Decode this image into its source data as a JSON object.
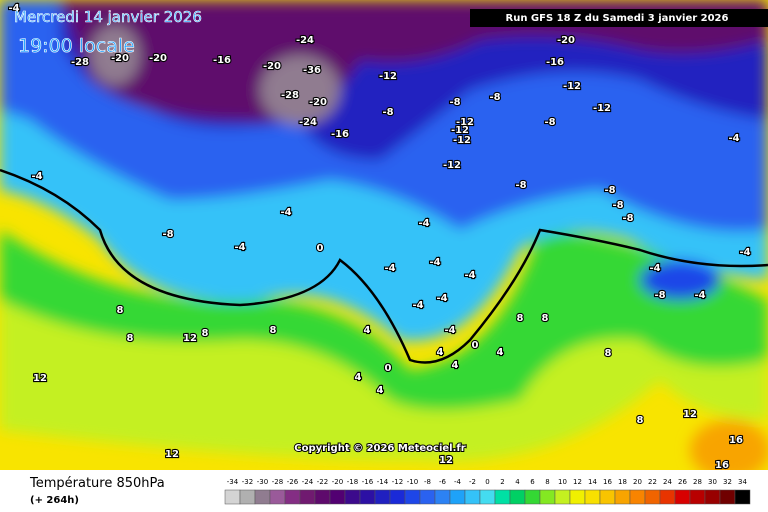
{
  "header": {
    "date": "Mercredi 14 janvier 2026",
    "time": "19:00 locale",
    "run": "Run GFS 18 Z du Samedi 3 janvier 2026"
  },
  "footer": {
    "title": "Température 850hPa",
    "subtitle": "(+ 264h)",
    "copyright": "Copyright © 2026 Meteociel.fr"
  },
  "legend": {
    "ticks": [
      -34,
      -32,
      -30,
      -28,
      -26,
      -24,
      -22,
      -20,
      -18,
      -16,
      -14,
      -12,
      -10,
      -8,
      -6,
      -4,
      -2,
      0,
      2,
      4,
      6,
      8,
      10,
      12,
      14,
      16,
      18,
      20,
      22,
      24,
      26,
      28,
      30,
      32,
      34
    ],
    "colors": [
      "#d4d4d4",
      "#b0b0b0",
      "#907c90",
      "#9a5a9a",
      "#842e84",
      "#701a70",
      "#5e0a6c",
      "#520072",
      "#3c0a8c",
      "#2c10a4",
      "#2020c0",
      "#1a2ad8",
      "#1e46e8",
      "#2a62f0",
      "#2c82f4",
      "#1ea2f8",
      "#34c2f8",
      "#44dcf0",
      "#00e0a4",
      "#00d064",
      "#34d834",
      "#84e822",
      "#c4f020",
      "#f0f000",
      "#f8e000",
      "#f8c400",
      "#f8a400",
      "#f88400",
      "#f06400",
      "#e83400",
      "#d80000",
      "#b80000",
      "#980000",
      "#700000",
      "#000000"
    ]
  },
  "map": {
    "labels": [
      -4,
      -28,
      -20,
      -20,
      -16,
      -24,
      -20,
      -36,
      -28,
      -20,
      -24,
      -16,
      -12,
      -8,
      -8,
      -8,
      -12,
      -12,
      -12,
      -12,
      -8,
      -20,
      -16,
      -12,
      -12,
      -4,
      -4,
      -4,
      -8,
      -8,
      -4,
      -4,
      -8,
      -8,
      -8,
      -4,
      0,
      -4,
      -4,
      -4,
      -4,
      -4,
      -4,
      8,
      8,
      8,
      8,
      8,
      8,
      12,
      12,
      12,
      4,
      4,
      4,
      4,
      0,
      0,
      4,
      4,
      8,
      8,
      12,
      12,
      16,
      16,
      -4,
      -4,
      -8
    ]
  }
}
